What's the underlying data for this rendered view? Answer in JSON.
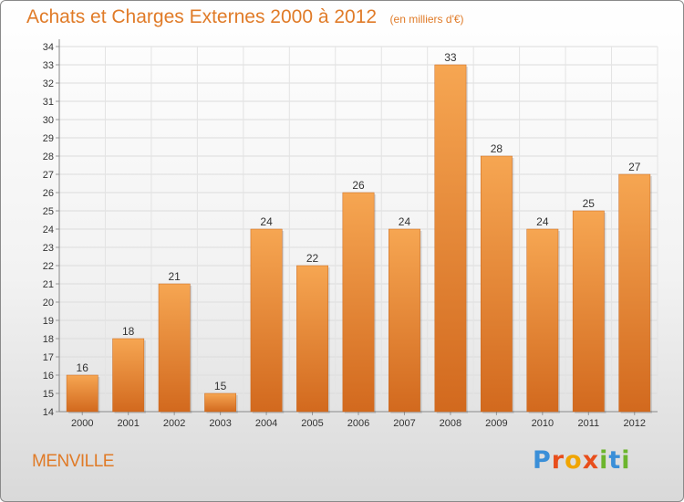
{
  "header": {
    "title": "Achats et Charges Externes 2000 à 2012",
    "subtitle": "(en milliers d'€)"
  },
  "footer": {
    "commune": "MENVILLE",
    "brand": "Proxiti",
    "brand_letters": [
      "P",
      "r",
      "o",
      "x",
      "i",
      "t",
      "i"
    ]
  },
  "colors": {
    "accent": "#e07b28",
    "bar_top": "#f6a652",
    "bar_bottom": "#d2691e",
    "brand_blue": "#3a8fd8",
    "brand_red": "#e84e1b",
    "brand_green": "#6cb52d",
    "brand_orange": "#f0a500"
  },
  "chart_data": {
    "type": "bar",
    "title": "Achats et Charges Externes 2000 à 2012",
    "subtitle": "(en milliers d'€)",
    "categories": [
      "2000",
      "2001",
      "2002",
      "2003",
      "2004",
      "2005",
      "2006",
      "2007",
      "2008",
      "2009",
      "2010",
      "2011",
      "2012"
    ],
    "values": [
      16,
      18,
      21,
      15,
      24,
      22,
      26,
      24,
      33,
      28,
      24,
      25,
      27
    ],
    "ylim": [
      14,
      34
    ],
    "yticks": [
      14,
      15,
      16,
      17,
      18,
      19,
      20,
      21,
      22,
      23,
      24,
      25,
      26,
      27,
      28,
      29,
      30,
      31,
      32,
      33,
      34
    ],
    "grid": true,
    "data_labels": true
  }
}
